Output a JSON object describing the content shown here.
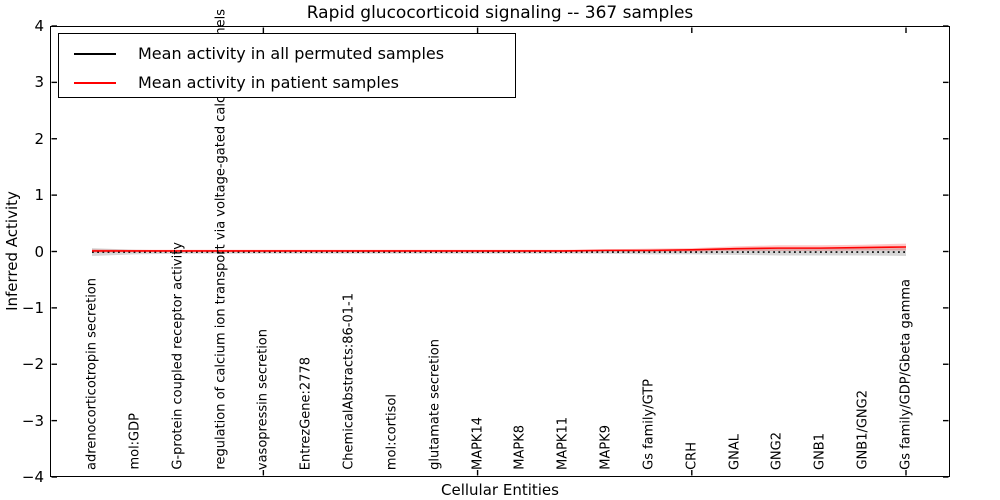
{
  "figure": {
    "title": "Rapid glucocorticoid signaling -- 367 samples",
    "xlabel": "Cellular Entities",
    "ylabel": "Inferred Activity"
  },
  "colors": {
    "patient_line": "#ff0000",
    "permuted_line": "#000000",
    "patient_band": "rgba(255,0,0,0.22)",
    "permuted_band": "rgba(120,120,120,0.30)",
    "spine": "#000000"
  },
  "chart_data": {
    "type": "line",
    "title": "Rapid glucocorticoid signaling -- 367 samples",
    "xlabel": "Cellular Entities",
    "ylabel": "Inferred Activity",
    "ylim": [
      -4,
      4
    ],
    "yticks": [
      4,
      3,
      2,
      1,
      0,
      -1,
      -2,
      -3,
      -4
    ],
    "ytick_labels": [
      "4",
      "3",
      "2",
      "1",
      "0",
      "−1",
      "−2",
      "−3",
      "−4"
    ],
    "grid": false,
    "legend_position": "upper left",
    "categories": [
      "adrenocorticotropin secretion",
      "mol:GDP",
      "G-protein coupled receptor activity",
      "regulation of calcium ion transport via voltage-gated calcium channels",
      "vasopressin secretion",
      "EntrezGene:2778",
      "ChemicalAbstracts:86-01-1",
      "mol:cortisol",
      "glutamate secretion",
      "MAPK14",
      "MAPK8",
      "MAPK11",
      "MAPK9",
      "Gs family/GTP",
      "CRH",
      "GNAL",
      "GNG2",
      "GNB1",
      "GNB1/GNG2",
      "Gs family/GDP/Gbeta gamma"
    ],
    "series": [
      {
        "name": "Mean activity in all permuted samples",
        "color": "#000000",
        "style": "dotted",
        "values": [
          -0.01,
          -0.01,
          -0.01,
          -0.01,
          -0.01,
          -0.01,
          -0.01,
          -0.01,
          -0.01,
          -0.01,
          -0.01,
          -0.01,
          -0.01,
          -0.01,
          -0.01,
          -0.01,
          -0.01,
          -0.01,
          -0.01,
          -0.01
        ],
        "band": {
          "color": "rgba(120,120,120,0.30)",
          "upper": [
            0.06,
            0.03,
            0.02,
            0.02,
            0.02,
            0.02,
            0.02,
            0.02,
            0.02,
            0.02,
            0.02,
            0.02,
            0.02,
            0.03,
            0.03,
            0.04,
            0.05,
            0.05,
            0.05,
            0.06
          ],
          "lower": [
            -0.08,
            -0.05,
            -0.04,
            -0.04,
            -0.04,
            -0.04,
            -0.04,
            -0.04,
            -0.04,
            -0.04,
            -0.04,
            -0.04,
            -0.04,
            -0.05,
            -0.05,
            -0.06,
            -0.07,
            -0.07,
            -0.07,
            -0.08
          ]
        }
      },
      {
        "name": "Mean activity in patient samples",
        "color": "#ff0000",
        "style": "solid",
        "values": [
          0.01,
          0.01,
          0.01,
          0.01,
          0.01,
          0.01,
          0.01,
          0.01,
          0.01,
          0.01,
          0.01,
          0.01,
          0.02,
          0.02,
          0.03,
          0.05,
          0.06,
          0.06,
          0.07,
          0.08
        ],
        "band": {
          "color": "rgba(255,0,0,0.22)",
          "upper": [
            0.04,
            0.03,
            0.03,
            0.03,
            0.03,
            0.03,
            0.03,
            0.03,
            0.03,
            0.03,
            0.03,
            0.03,
            0.04,
            0.05,
            0.06,
            0.09,
            0.11,
            0.11,
            0.12,
            0.14
          ],
          "lower": [
            -0.02,
            -0.01,
            -0.01,
            -0.01,
            -0.01,
            -0.01,
            -0.01,
            -0.01,
            -0.01,
            -0.01,
            -0.01,
            -0.01,
            0.0,
            -0.01,
            0.0,
            0.01,
            0.01,
            0.01,
            0.02,
            0.02
          ]
        }
      }
    ]
  }
}
